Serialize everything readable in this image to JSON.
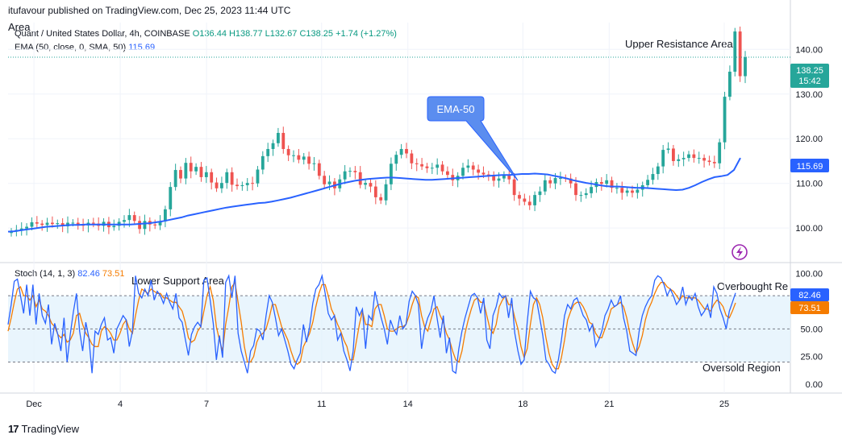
{
  "header": {
    "published_by": "itufavour published on TradingView.com, Dec 25, 2023 11:44 UTC",
    "area_label": "Area",
    "symbol": "Quant / United States Dollar, 4h, COINBASE",
    "ohlc": "O136.44  H138.77  L132.67  C138.25  +1.74 (+1.27%)",
    "ema_label": "EMA (50, close, 0, SMA, 50)",
    "ema_value": "115.69",
    "stoch_label": "Stoch (14, 1, 3)",
    "stoch_k": "82.46",
    "stoch_d": "73.51"
  },
  "annotations": {
    "upper_resistance": "Upper Resistance Area",
    "ema_callout": "EMA-50",
    "lower_support": "Lower Support Area",
    "overbought": "Overbought Re",
    "oversold": "Oversold Region"
  },
  "price_labels": {
    "last_price": "138.25",
    "countdown": "15:42",
    "ema_price": "115.69",
    "stoch_k": "82.46",
    "stoch_d": "73.51"
  },
  "colors": {
    "up": "#26a69a",
    "down": "#ef5350",
    "ema": "#2962ff",
    "stoch_k": "#2962ff",
    "stoch_d": "#f57c00",
    "band": "#e3f2fd",
    "callout": "#5b8def"
  },
  "footer": {
    "brand": "TradingView",
    "brand_mark": "17"
  },
  "chart_data": [
    {
      "type": "candlestick",
      "ylim": [
        93,
        146
      ],
      "y_ticks": [
        "140.00",
        "130.00",
        "120.00",
        "110.00",
        "100.00"
      ],
      "y_tick_values": [
        140,
        130,
        120,
        110,
        100
      ],
      "x_ticks": [
        "Dec",
        "4",
        "7",
        "11",
        "14",
        "18",
        "21",
        "25"
      ],
      "x_tick_positions": [
        1,
        4,
        7,
        11,
        14,
        18,
        21,
        25
      ],
      "x_range": [
        0.1,
        27.3
      ],
      "candles_close": [
        99.2,
        99.6,
        99.9,
        100.3,
        101.3,
        101.0,
        100.7,
        101.2,
        100.9,
        101.1,
        100.4,
        101.2,
        101.2,
        100.7,
        100.6,
        101.2,
        101.0,
        100.5,
        101.4,
        100.2,
        100.5,
        101.4,
        101.8,
        102.9,
        101.6,
        99.8,
        101.6,
        100.8,
        100.6,
        101.5,
        104.2,
        109.2,
        113.0,
        111.1,
        114.6,
        112.7,
        113.7,
        111.4,
        112.5,
        110.2,
        108.9,
        110.1,
        112.5,
        109.7,
        109.4,
        109.6,
        110.1,
        110.0,
        113.1,
        116.1,
        117.7,
        119.0,
        121.3,
        117.7,
        116.3,
        116.3,
        115.3,
        116.0,
        114.4,
        114.5,
        111.7,
        109.8,
        110.4,
        108.9,
        110.9,
        112.7,
        112.8,
        112.5,
        109.7,
        110.1,
        109.3,
        106.9,
        106.2,
        109.8,
        114.4,
        116.4,
        117.7,
        116.7,
        114.5,
        114.3,
        113.8,
        113.4,
        113.5,
        114.2,
        112.7,
        111.9,
        110.7,
        111.7,
        113.5,
        114.0,
        113.1,
        112.4,
        112.0,
        111.6,
        110.6,
        111.1,
        111.9,
        110.9,
        107.4,
        106.6,
        105.9,
        105.1,
        107.4,
        108.2,
        110.7,
        110.0,
        111.2,
        111.2,
        111.1,
        110.0,
        107.4,
        107.4,
        107.8,
        109.2,
        110.3,
        109.9,
        110.7,
        109.0,
        109.0,
        107.9,
        108.4,
        107.9,
        108.6,
        109.6,
        110.8,
        112.1,
        113.8,
        117.5,
        117.8,
        115.0,
        115.4,
        115.7,
        116.5,
        115.7,
        115.7,
        115.1,
        114.8,
        114.5,
        119.2,
        129.4,
        135.0,
        144.0,
        134.0,
        138.25
      ],
      "ema": [
        99.2,
        99.3,
        99.5,
        99.7,
        99.9,
        100.1,
        100.3,
        100.4,
        100.5,
        100.6,
        100.7,
        100.7,
        100.8,
        100.8,
        100.8,
        100.8,
        100.8,
        100.8,
        100.8,
        100.8,
        100.9,
        101.0,
        101.1,
        101.3,
        101.5,
        101.8,
        102.1,
        102.4,
        102.8,
        103.1,
        103.4,
        103.7,
        104.0,
        104.3,
        104.6,
        104.8,
        105.0,
        105.2,
        105.4,
        105.6,
        105.7,
        105.9,
        106.2,
        106.5,
        106.8,
        107.2,
        107.6,
        108.0,
        108.4,
        108.8,
        109.2,
        109.6,
        110.0,
        110.3,
        110.6,
        110.8,
        111.0,
        111.1,
        111.2,
        111.3,
        111.3,
        111.2,
        111.1,
        111.0,
        110.9,
        110.8,
        110.8,
        110.9,
        111.0,
        111.1,
        111.2,
        111.3,
        111.4,
        111.5,
        111.6,
        111.7,
        111.8,
        111.9,
        111.9,
        112.0,
        112.1,
        112.1,
        112.2,
        112.1,
        112.0,
        111.7,
        111.4,
        111.1,
        110.7,
        110.4,
        110.1,
        109.9,
        109.6,
        109.4,
        109.3,
        109.3,
        109.2,
        109.1,
        109.0,
        109.0,
        108.9,
        108.8,
        108.7,
        108.6,
        108.5,
        108.6,
        109.0,
        109.6,
        110.3,
        110.9,
        111.4,
        111.6,
        111.9,
        113.0,
        115.69
      ],
      "series": [
        {
          "name": "Quant / United States Dollar",
          "kind": "candles"
        },
        {
          "name": "EMA (50, close, 0, SMA, 50)",
          "kind": "line",
          "last": 115.69
        }
      ]
    },
    {
      "type": "line",
      "ylim": [
        -8,
        107
      ],
      "y_ticks": [
        "100.00",
        "75.00",
        "50.00",
        "25.00",
        "0.00"
      ],
      "y_tick_values": [
        100,
        75,
        50,
        25,
        0
      ],
      "levels": [
        80,
        50,
        20
      ],
      "series": [
        {
          "name": "%K",
          "last": 82.46,
          "values": [
            54,
            72,
            93,
            95,
            80,
            64,
            90,
            62,
            90,
            54,
            82,
            62,
            55,
            72,
            36,
            55,
            45,
            30,
            60,
            20,
            45,
            65,
            82,
            48,
            30,
            56,
            42,
            10,
            48,
            45,
            54,
            60,
            40,
            42,
            28,
            50,
            56,
            62,
            58,
            34,
            48,
            98,
            82,
            78,
            86,
            80,
            94,
            76,
            84,
            80,
            73,
            82,
            74,
            68,
            82,
            60,
            56,
            41,
            26,
            45,
            52,
            56,
            52,
            94,
            96,
            76,
            55,
            22,
            44,
            24,
            92,
            98,
            78,
            98,
            46,
            30,
            20,
            10,
            30,
            35,
            50,
            48,
            40,
            62,
            80,
            74,
            60,
            44,
            50,
            40,
            30,
            18,
            14,
            22,
            28,
            54,
            38,
            52,
            73,
            86,
            90,
            98,
            82,
            64,
            58,
            62,
            40,
            46,
            30,
            22,
            12,
            30,
            70,
            62,
            68,
            32,
            62,
            58,
            84,
            72,
            60,
            50,
            36,
            58,
            50,
            45,
            62,
            50,
            54,
            75,
            84,
            80,
            72,
            32,
            50,
            60,
            66,
            80,
            60,
            42,
            62,
            28,
            42,
            12,
            10,
            32,
            48,
            60,
            70,
            80,
            82,
            78,
            64,
            78,
            40,
            32,
            62,
            70,
            82,
            78,
            80,
            60,
            78,
            46,
            30,
            18,
            22,
            56,
            84,
            78,
            76,
            60,
            44,
            22,
            18,
            12,
            10,
            22,
            40,
            62,
            72,
            68,
            76,
            78,
            70,
            62,
            58,
            48,
            54,
            34,
            40,
            48,
            62,
            68,
            76,
            70,
            72,
            80,
            60,
            48,
            30,
            28,
            26,
            48,
            62,
            70,
            76,
            80,
            94,
            98,
            96,
            90,
            80,
            86,
            80,
            72,
            76,
            88,
            72,
            80,
            76,
            82,
            70,
            62,
            66,
            72,
            60,
            88,
            82,
            68,
            60,
            50,
            66,
            74,
            82.46
          ]
        },
        {
          "name": "%D",
          "last": 73.51,
          "values": [
            48,
            60,
            74,
            86,
            88,
            80,
            80,
            76,
            80,
            70,
            76,
            68,
            66,
            62,
            55,
            52,
            45,
            42,
            45,
            38,
            40,
            46,
            62,
            64,
            54,
            46,
            42,
            36,
            34,
            34,
            48,
            52,
            50,
            46,
            40,
            40,
            46,
            54,
            58,
            50,
            46,
            62,
            76,
            86,
            84,
            82,
            86,
            84,
            82,
            82,
            78,
            78,
            76,
            74,
            74,
            70,
            66,
            56,
            42,
            38,
            40,
            48,
            52,
            66,
            80,
            88,
            76,
            52,
            40,
            30,
            54,
            70,
            88,
            92,
            74,
            56,
            34,
            20,
            20,
            25,
            38,
            44,
            46,
            50,
            60,
            72,
            72,
            62,
            52,
            46,
            40,
            30,
            22,
            18,
            20,
            34,
            40,
            46,
            56,
            70,
            82,
            90,
            90,
            80,
            68,
            62,
            54,
            48,
            40,
            34,
            22,
            22,
            38,
            54,
            66,
            54,
            54,
            52,
            68,
            72,
            72,
            62,
            50,
            48,
            48,
            50,
            52,
            52,
            54,
            62,
            72,
            80,
            78,
            62,
            52,
            48,
            58,
            68,
            70,
            62,
            56,
            46,
            40,
            30,
            22,
            20,
            30,
            46,
            58,
            68,
            76,
            78,
            74,
            74,
            62,
            50,
            46,
            54,
            70,
            76,
            80,
            72,
            72,
            60,
            50,
            34,
            24,
            32,
            54,
            72,
            78,
            72,
            60,
            42,
            28,
            18,
            14,
            14,
            24,
            40,
            58,
            66,
            72,
            74,
            74,
            70,
            64,
            56,
            54,
            46,
            42,
            42,
            50,
            58,
            68,
            70,
            72,
            74,
            70,
            60,
            46,
            36,
            28,
            34,
            44,
            58,
            68,
            74,
            82,
            88,
            92,
            92,
            88,
            86,
            84,
            80,
            76,
            80,
            78,
            78,
            78,
            78,
            76,
            72,
            68,
            68,
            66,
            72,
            76,
            74,
            70,
            62,
            60,
            66,
            73.51
          ]
        }
      ]
    }
  ]
}
